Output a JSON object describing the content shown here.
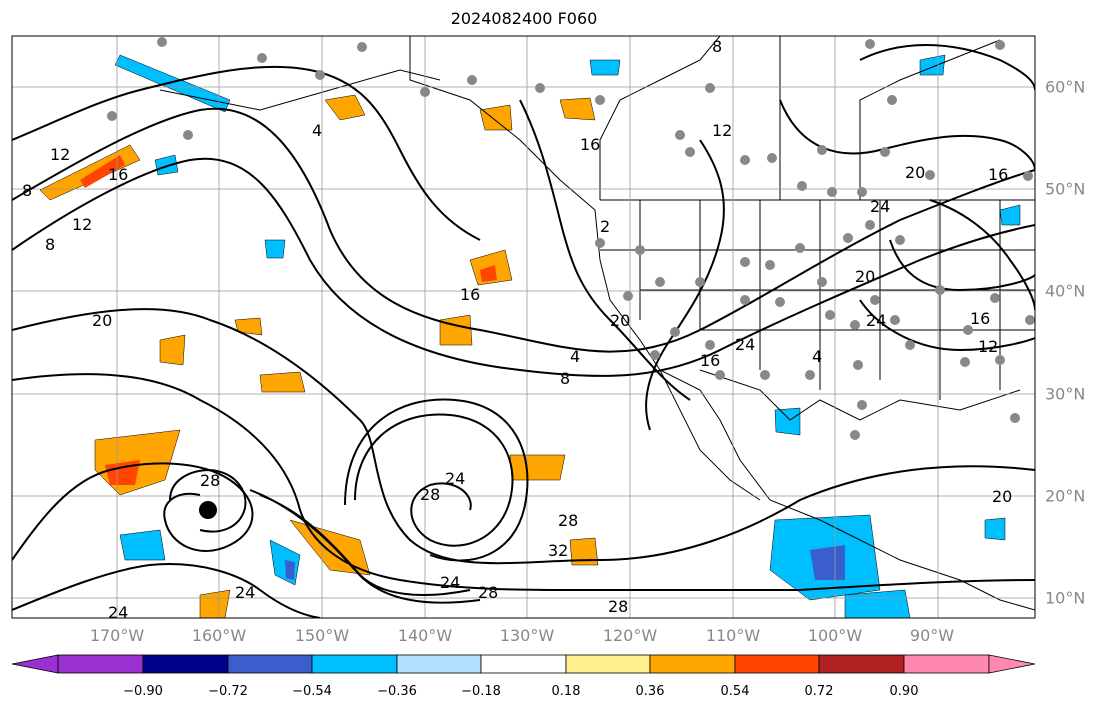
{
  "title": "2024082400 F060",
  "longitude_labels": [
    "170°W",
    "160°W",
    "150°W",
    "140°W",
    "130°W",
    "120°W",
    "110°W",
    "100°W",
    "90°W"
  ],
  "latitude_labels": [
    "60°N",
    "50°N",
    "40°N",
    "30°N",
    "20°N",
    "10°N"
  ],
  "contour_labels": [
    "8",
    "12",
    "16",
    "4",
    "8",
    "12",
    "20",
    "20",
    "16",
    "4",
    "16",
    "28",
    "24",
    "24",
    "28",
    "32",
    "28",
    "24",
    "28",
    "24",
    "28",
    "16",
    "24",
    "4",
    "8",
    "20",
    "24",
    "16",
    "12",
    "20",
    "24",
    "2",
    "12",
    "8",
    "20",
    "16"
  ],
  "colorbar": {
    "tick_labels": [
      "−0.90",
      "−0.72",
      "−0.54",
      "−0.36",
      "−0.18",
      "0.18",
      "0.36",
      "0.54",
      "0.72",
      "0.90"
    ],
    "colors": [
      "#9b30d0",
      "#00008b",
      "#3a5fcd",
      "#00bfff",
      "#b0e2ff",
      "#ffffff",
      "#fff08c",
      "#ffa500",
      "#ff4500",
      "#b22222",
      "#ff88b0"
    ]
  },
  "field_colors": {
    "positive_light": "#ffa500",
    "positive_strong": "#ff4500",
    "negative_light": "#00bfff",
    "negative_strong": "#3a5fcd"
  }
}
